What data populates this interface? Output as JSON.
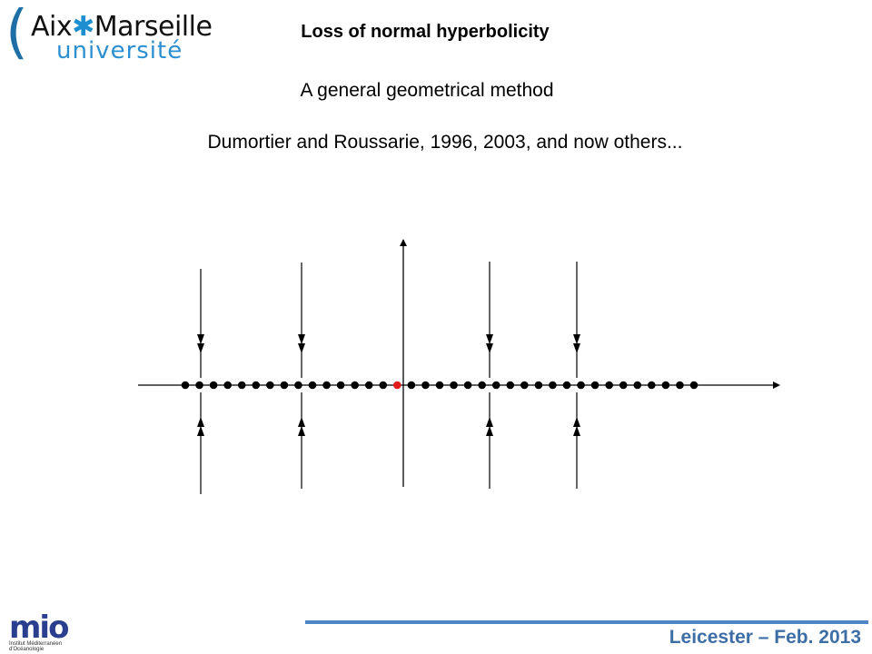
{
  "header": {
    "logo_aix": "Aix",
    "logo_marseille": "Marseille",
    "logo_universite": "université",
    "title": "Loss of normal hyperbolicity"
  },
  "content": {
    "subtitle": "A general geometrical method",
    "authors": "Dumortier and Roussarie, 1996, 2003, and now others..."
  },
  "diagram": {
    "dot_count": 37,
    "highlight_color": "#e01b1b",
    "dot_color": "#000000"
  },
  "footer": {
    "mio_logo": "mio",
    "mio_subtitle": "Institut Méditerranéen d'Océanologie",
    "text": "Leicester – Feb. 2013",
    "line_color": "#4f86c6"
  }
}
